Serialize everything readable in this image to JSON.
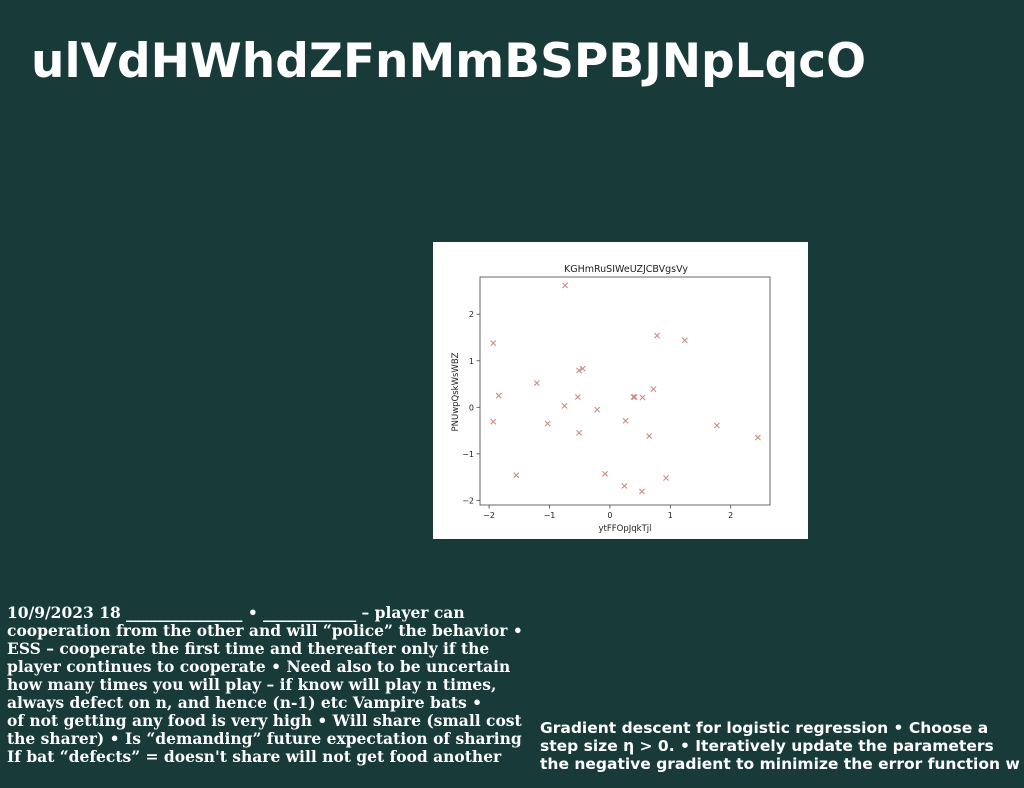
{
  "slide": {
    "title": "ulVdHWhdZFnMmBSPBJNpLqcO",
    "left_lines": [
      "10/9/2023 18 _______________ • ____________ – player can",
      "cooperation from the other  and will “police” the behavior •",
      "ESS – cooperate the first time and thereafter only if the",
      "player continues to cooperate • Need also to be uncertain",
      "how many times you will play – if know will play n times,",
      "always defect on n, and hence (n-1) etc Vampire bats •",
      "of not getting any food is very  high • Will share (small cost",
      "the sharer) • Is “demanding” future expectation of sharing",
      "If bat “defects” = doesn't share will not get food another"
    ],
    "right_lines": [
      "Gradient descent for logistic regression • Choose a",
      "step size η > 0. • Iteratively update the parameters",
      "the negative gradient to minimize the error function w"
    ]
  },
  "chart_data": {
    "type": "scatter",
    "title": "KGHmRuSIWeUZJCBVgsVy",
    "xlabel": "ytFFOpJqkTjl",
    "ylabel": "PNUwpQskWsWBZ",
    "xlim": [
      -2.15,
      2.65
    ],
    "ylim": [
      -2.1,
      2.8
    ],
    "xticks": [
      -2,
      -1,
      0,
      1,
      2
    ],
    "yticks": [
      -2,
      -1,
      0,
      1,
      2
    ],
    "xtick_labels": [
      "−2",
      "−1",
      "0",
      "1",
      "2"
    ],
    "ytick_labels": [
      "−2",
      "−1",
      "0",
      "1",
      "2"
    ],
    "marker": "x",
    "color": "#c98f86",
    "grid": false,
    "points": [
      {
        "x": -1.93,
        "y": 1.38
      },
      {
        "x": -1.84,
        "y": 0.25
      },
      {
        "x": -1.93,
        "y": -0.31
      },
      {
        "x": -1.55,
        "y": -1.46
      },
      {
        "x": -1.21,
        "y": 0.52
      },
      {
        "x": -1.03,
        "y": -0.35
      },
      {
        "x": -0.74,
        "y": 2.62
      },
      {
        "x": -0.75,
        "y": 0.03
      },
      {
        "x": -0.53,
        "y": 0.22
      },
      {
        "x": -0.51,
        "y": 0.79
      },
      {
        "x": -0.45,
        "y": 0.83
      },
      {
        "x": -0.51,
        "y": -0.55
      },
      {
        "x": -0.21,
        "y": -0.05
      },
      {
        "x": -0.08,
        "y": -1.43
      },
      {
        "x": 0.26,
        "y": -0.29
      },
      {
        "x": 0.24,
        "y": -1.69
      },
      {
        "x": 0.39,
        "y": 0.22
      },
      {
        "x": 0.41,
        "y": 0.22
      },
      {
        "x": 0.54,
        "y": 0.21
      },
      {
        "x": 0.53,
        "y": -1.81
      },
      {
        "x": 0.65,
        "y": -0.62
      },
      {
        "x": 0.72,
        "y": 0.39
      },
      {
        "x": 0.78,
        "y": 1.54
      },
      {
        "x": 0.93,
        "y": -1.52
      },
      {
        "x": 1.24,
        "y": 1.44
      },
      {
        "x": 1.77,
        "y": -0.39
      },
      {
        "x": 2.45,
        "y": -0.65
      }
    ]
  }
}
